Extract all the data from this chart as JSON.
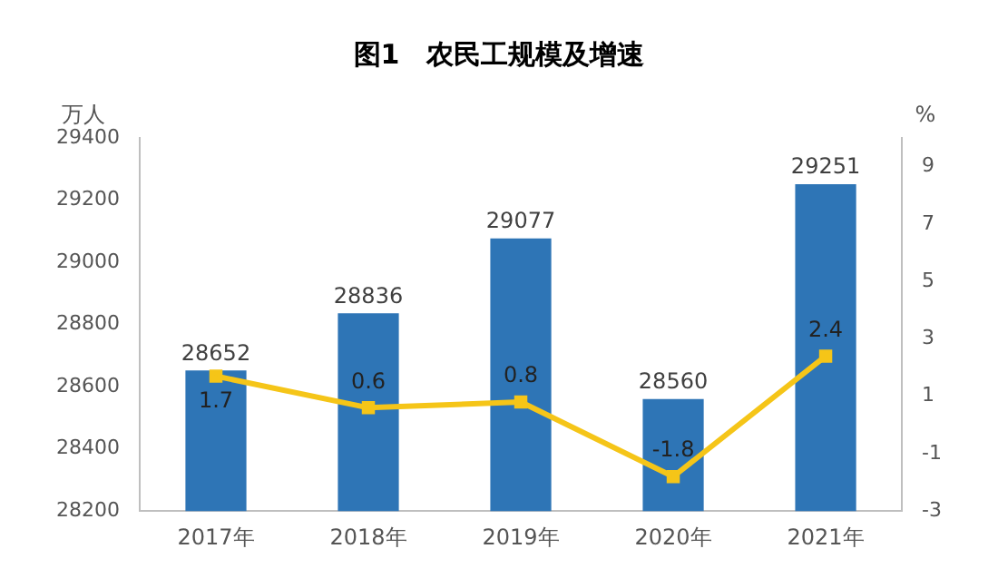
{
  "chart_data": {
    "type": "bar",
    "title": "图1　农民工规模及增速",
    "ylabel": "万人",
    "y2label": "%",
    "categories": [
      "2017年",
      "2018年",
      "2019年",
      "2020年",
      "2021年"
    ],
    "series": [
      {
        "color": "#2e75b6",
        "values": [
          28652,
          28836,
          29077,
          28560,
          29251
        ]
      },
      {
        "type": "line",
        "axis": "y2",
        "color": "#f5c518",
        "values": [
          1.7,
          0.6,
          0.8,
          -1.8,
          2.4
        ]
      }
    ],
    "ylim": [
      28200,
      29400
    ],
    "yticks": [
      28200,
      28400,
      28600,
      28800,
      29000,
      29200,
      29400
    ],
    "y2lim": [
      -3,
      10
    ],
    "y2ticks": [
      -3,
      -1,
      1,
      3,
      5,
      7,
      9
    ],
    "data_labels": true,
    "grid": false,
    "legend": false,
    "marker": "square",
    "line_style": "solid"
  }
}
